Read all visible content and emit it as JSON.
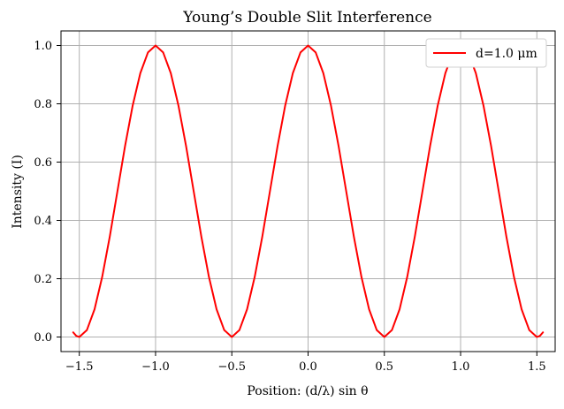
{
  "chart_data": {
    "type": "line",
    "title": "Young’s Double Slit Interference",
    "xlabel": "Position: (d/λ) sin θ",
    "ylabel": "Intensity (I)",
    "xlim": [
      -1.62,
      1.62
    ],
    "ylim": [
      -0.05,
      1.05
    ],
    "grid": true,
    "legend_placement": "top-right",
    "xticks": [
      -1.5,
      -1.0,
      -0.5,
      0.0,
      0.5,
      1.0,
      1.5
    ],
    "xtick_labels": [
      "−1.5",
      "−1.0",
      "−0.5",
      "0.0",
      "0.5",
      "1.0",
      "1.5"
    ],
    "yticks": [
      0.0,
      0.2,
      0.4,
      0.6,
      0.8,
      1.0
    ],
    "ytick_labels": [
      "0.0",
      "0.2",
      "0.4",
      "0.6",
      "0.8",
      "1.0"
    ],
    "series": [
      {
        "name": "d=1.0 μm",
        "color": "#ff0000",
        "x": [
          -1.54,
          -1.52,
          -1.5,
          -1.45,
          -1.4,
          -1.35,
          -1.3,
          -1.25,
          -1.2,
          -1.15,
          -1.1,
          -1.05,
          -1.0,
          -0.95,
          -0.9,
          -0.85,
          -0.8,
          -0.75,
          -0.7,
          -0.65,
          -0.6,
          -0.55,
          -0.5,
          -0.45,
          -0.4,
          -0.35,
          -0.3,
          -0.25,
          -0.2,
          -0.15,
          -0.1,
          -0.05,
          0.0,
          0.05,
          0.1,
          0.15,
          0.2,
          0.25,
          0.3,
          0.35,
          0.4,
          0.45,
          0.5,
          0.55,
          0.6,
          0.65,
          0.7,
          0.75,
          0.8,
          0.85,
          0.9,
          0.95,
          1.0,
          1.05,
          1.1,
          1.15,
          1.2,
          1.25,
          1.3,
          1.35,
          1.4,
          1.45,
          1.5,
          1.52,
          1.54
        ],
        "y": [
          0.016,
          0.004,
          0.0,
          0.024,
          0.095,
          0.206,
          0.345,
          0.5,
          0.655,
          0.794,
          0.905,
          0.976,
          1.0,
          0.976,
          0.905,
          0.794,
          0.655,
          0.5,
          0.345,
          0.206,
          0.095,
          0.024,
          0.0,
          0.024,
          0.095,
          0.206,
          0.345,
          0.5,
          0.655,
          0.794,
          0.905,
          0.976,
          1.0,
          0.976,
          0.905,
          0.794,
          0.655,
          0.5,
          0.345,
          0.206,
          0.095,
          0.024,
          0.0,
          0.024,
          0.095,
          0.206,
          0.345,
          0.5,
          0.655,
          0.794,
          0.905,
          0.976,
          1.0,
          0.976,
          0.905,
          0.794,
          0.655,
          0.5,
          0.345,
          0.206,
          0.095,
          0.024,
          0.0,
          0.004,
          0.016
        ]
      }
    ]
  }
}
